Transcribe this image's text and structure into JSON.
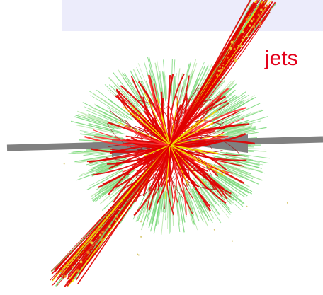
{
  "label": {
    "text": "jets"
  },
  "colors": {
    "label": "#e3001b",
    "header_band": "#ececfb",
    "beam_pipe": "#808080",
    "charged_tracks": "#e00000",
    "dark_tracks": "#a01010",
    "soft_tracks": "#7ad87a",
    "highlight_tracks": "#f0e000"
  },
  "icons": {
    "event": "particle-collision-event-display"
  }
}
